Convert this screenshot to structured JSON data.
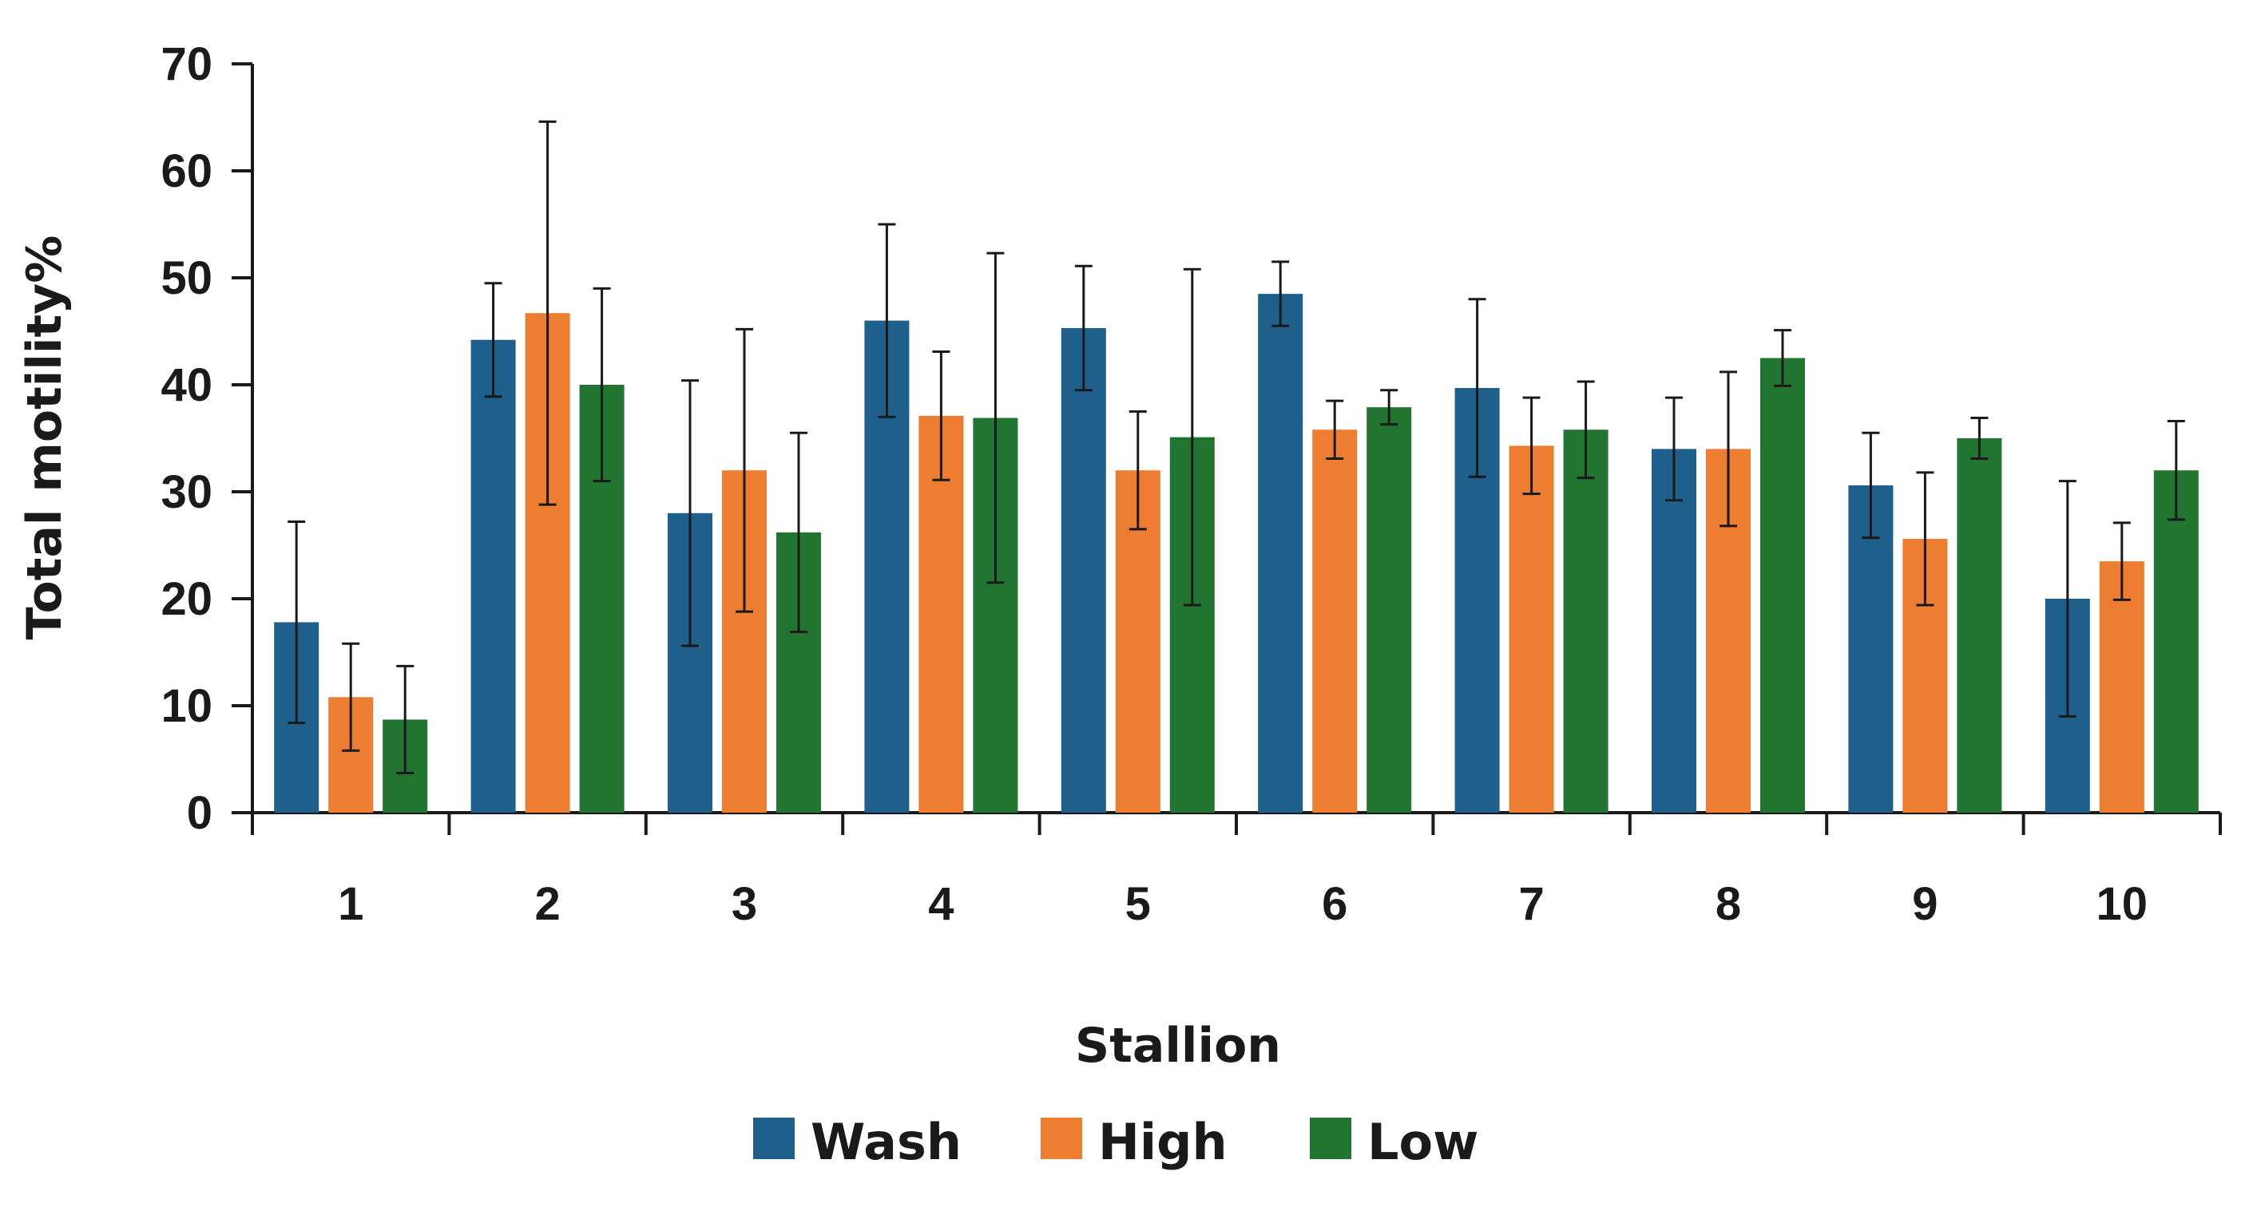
{
  "chart_data": {
    "type": "bar",
    "title": "",
    "xlabel": "Stallion",
    "ylabel": "Total motility%",
    "categories": [
      "1",
      "2",
      "3",
      "4",
      "5",
      "6",
      "7",
      "8",
      "9",
      "10"
    ],
    "ylim": [
      0,
      70
    ],
    "yticks": [
      "0",
      "10",
      "20",
      "30",
      "40",
      "50",
      "60",
      "70"
    ],
    "grid": false,
    "legend_position": "bottom-center",
    "series": [
      {
        "name": "Wash",
        "color": "#1f5f8b",
        "values": [
          17.8,
          44.2,
          28.0,
          46.0,
          45.3,
          48.5,
          39.7,
          34.0,
          30.6,
          20.0
        ],
        "error": [
          9.4,
          5.3,
          12.4,
          9.0,
          5.8,
          3.0,
          8.3,
          4.8,
          4.9,
          11.0
        ]
      },
      {
        "name": "High",
        "color": "#ed7d31",
        "values": [
          10.8,
          46.7,
          32.0,
          37.1,
          32.0,
          35.8,
          34.3,
          34.0,
          25.6,
          23.5
        ],
        "error": [
          5.0,
          17.9,
          13.2,
          6.0,
          5.5,
          2.7,
          4.5,
          7.2,
          6.2,
          3.6
        ]
      },
      {
        "name": "Low",
        "color": "#217531",
        "values": [
          8.7,
          40.0,
          26.2,
          36.9,
          35.1,
          37.9,
          35.8,
          42.5,
          35.0,
          32.0
        ],
        "error": [
          5.0,
          9.0,
          9.3,
          15.4,
          15.7,
          1.6,
          4.5,
          2.6,
          1.9,
          4.6
        ]
      }
    ]
  }
}
